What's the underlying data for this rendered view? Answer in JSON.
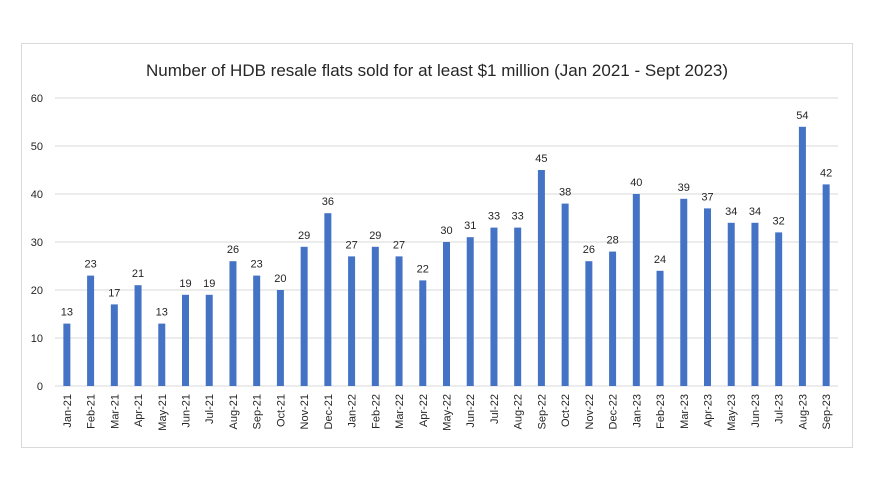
{
  "chart_data": {
    "type": "bar",
    "title": "Number of HDB resale flats sold for at least $1 million (Jan 2021 - Sept 2023)",
    "xlabel": "",
    "ylabel": "",
    "ylim": [
      0,
      60
    ],
    "yticks": [
      0,
      10,
      20,
      30,
      40,
      50,
      60
    ],
    "grid": true,
    "legend": "none",
    "bar_color": "#4472c4",
    "grid_color": "#d9d9d9",
    "categories": [
      "Jan-21",
      "Feb-21",
      "Mar-21",
      "Apr-21",
      "May-21",
      "Jun-21",
      "Jul-21",
      "Aug-21",
      "Sep-21",
      "Oct-21",
      "Nov-21",
      "Dec-21",
      "Jan-22",
      "Feb-22",
      "Mar-22",
      "Apr-22",
      "May-22",
      "Jun-22",
      "Jul-22",
      "Aug-22",
      "Sep-22",
      "Oct-22",
      "Nov-22",
      "Dec-22",
      "Jan-23",
      "Feb-23",
      "Mar-23",
      "Apr-23",
      "May-23",
      "Jun-23",
      "Jul-23",
      "Aug-23",
      "Sep-23"
    ],
    "values": [
      13,
      23,
      17,
      21,
      13,
      19,
      19,
      26,
      23,
      20,
      29,
      36,
      27,
      29,
      27,
      22,
      30,
      31,
      33,
      33,
      45,
      38,
      26,
      28,
      40,
      24,
      39,
      37,
      34,
      34,
      32,
      54,
      42
    ]
  }
}
